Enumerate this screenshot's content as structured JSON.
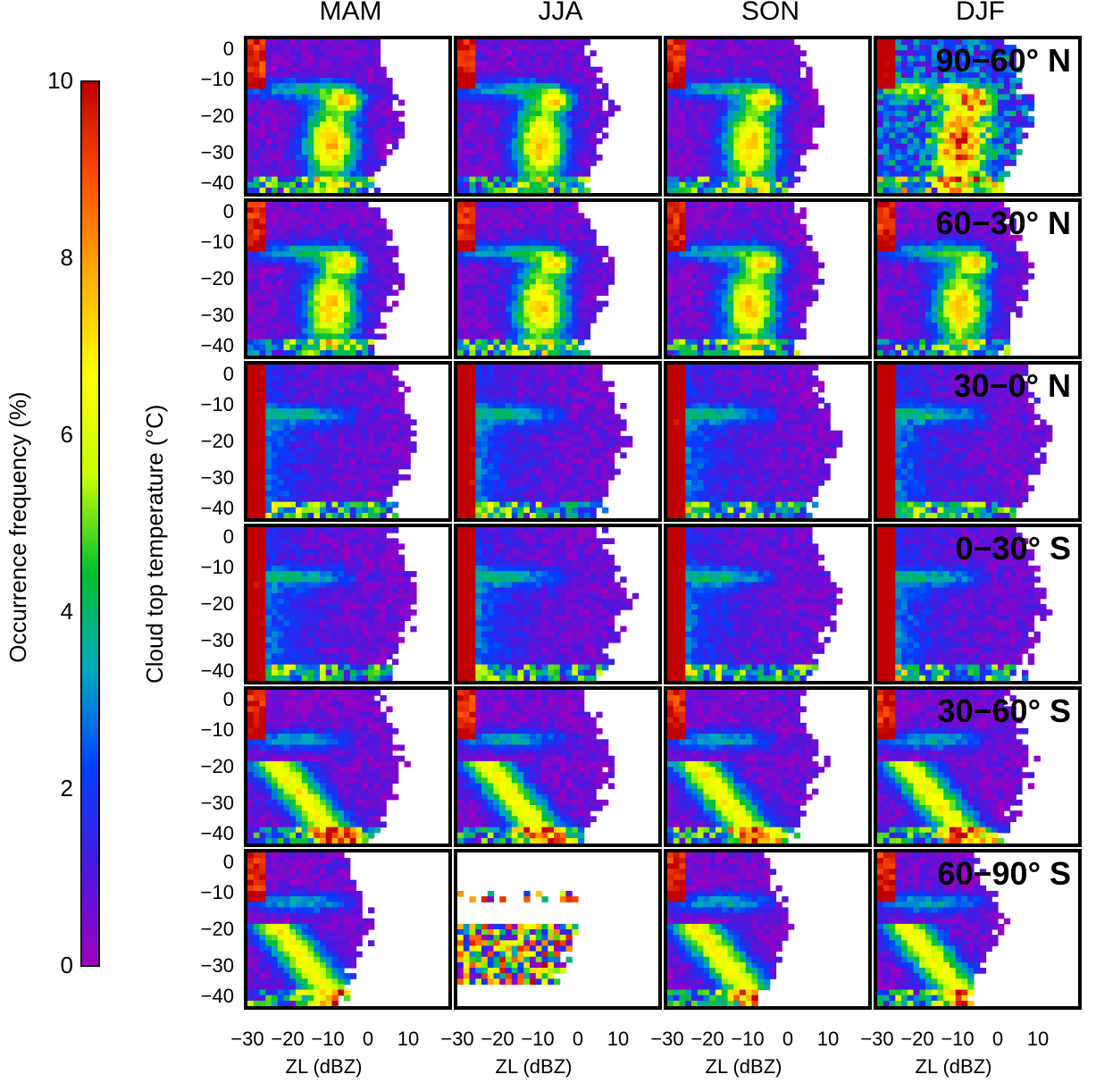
{
  "chart_data": {
    "type": "heatmap",
    "columns": [
      "MAM",
      "JJA",
      "SON",
      "DJF"
    ],
    "rows": [
      "90−60° N",
      "60−30° N",
      "30−0° N",
      "0−30° S",
      "30−60° S",
      "60−90° S"
    ],
    "xlabel": "ZL (dBZ)",
    "ylabel": "Cloud top temperature (°C)",
    "xlim": [
      -30,
      20
    ],
    "ylim": [
      -41,
      1
    ],
    "xticks": [
      "−30",
      "−20",
      "−10",
      "0",
      "10"
    ],
    "yticks": [
      "0",
      "−10",
      "−20",
      "−30",
      "−40"
    ],
    "colorbar": {
      "label": "Occurrence frequency (%)",
      "range": [
        0,
        10
      ],
      "ticks": [
        "0",
        "2",
        "4",
        "6",
        "8",
        "10"
      ],
      "colormap": [
        "#a000c0",
        "#4a18e0",
        "#0040ff",
        "#00a8c0",
        "#00c030",
        "#c8ff00",
        "#ffff00",
        "#ffb000",
        "#ff5000",
        "#c00000"
      ]
    },
    "grid": false
  }
}
